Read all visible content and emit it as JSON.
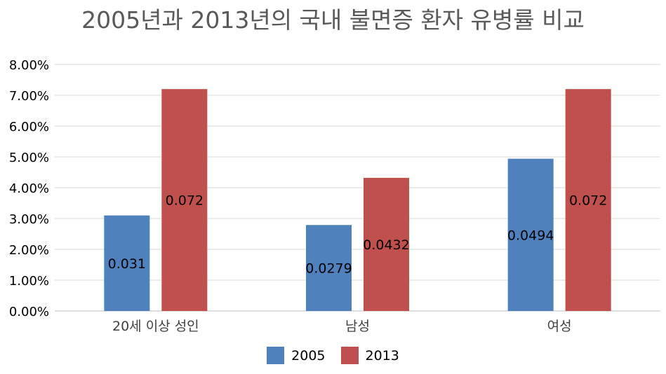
{
  "chart_data": {
    "type": "bar",
    "title": "2005년과 2013년의 국내 불면증 환자 유병률 비교",
    "categories": [
      "20세 이상 성인",
      "남성",
      "여성"
    ],
    "series": [
      {
        "name": "2005",
        "color": "#4f81bd",
        "values": [
          0.031,
          0.0279,
          0.0494
        ],
        "labels": [
          "0.031",
          "0.0279",
          "0.0494"
        ]
      },
      {
        "name": "2013",
        "color": "#c0504d",
        "values": [
          0.072,
          0.0432,
          0.072
        ],
        "labels": [
          "0.072",
          "0.0432",
          "0.072"
        ]
      }
    ],
    "ylim": [
      0,
      0.08
    ],
    "yticks": [
      "0.00%",
      "1.00%",
      "2.00%",
      "3.00%",
      "4.00%",
      "5.00%",
      "6.00%",
      "7.00%",
      "8.00%"
    ],
    "grid": true,
    "legend_position": "bottom"
  }
}
